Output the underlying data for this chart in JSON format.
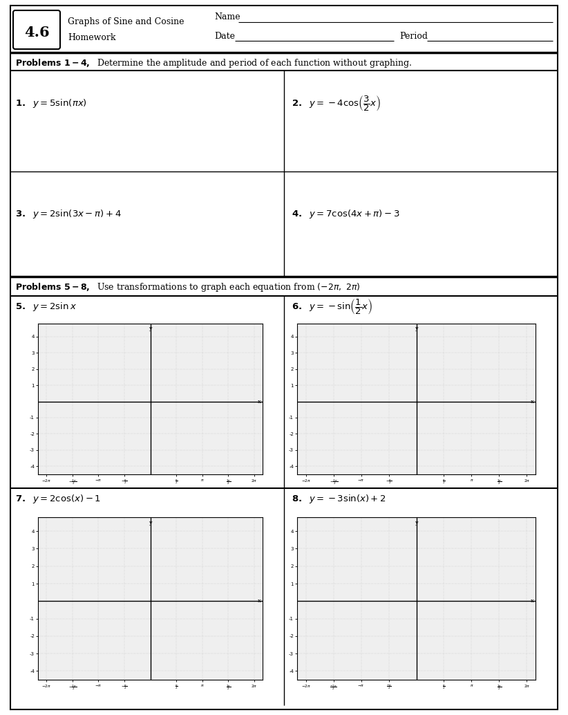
{
  "title_num": "4.6",
  "title_main": "Graphs of Sine and Cosine",
  "title_sub": "Homework",
  "bg_color": "#ffffff",
  "grid_bg": "#f0f0f0",
  "grid_color": "#aaaaaa",
  "prob1_text": "$y = 5\\sin(\\pi x)$",
  "prob2_text": "$y = -4\\cos\\!\\left(\\dfrac{3}{2}x\\right)$",
  "prob3_text": "$y = 2\\sin(3x - \\pi) + 4$",
  "prob4_text": "$y = 7\\cos(4x + \\pi) - 3$",
  "prob5_text": "$y = 2\\sin x$",
  "prob6_text": "$y = -\\sin\\!\\left(\\dfrac{1}{2}x\\right)$",
  "prob7_text": "$y = 2\\cos(x) - 1$",
  "prob8_text": "$y = -3\\sin(x) + 2$",
  "yticks": [
    -4,
    -3,
    -2,
    -1,
    1,
    2,
    3,
    4
  ]
}
